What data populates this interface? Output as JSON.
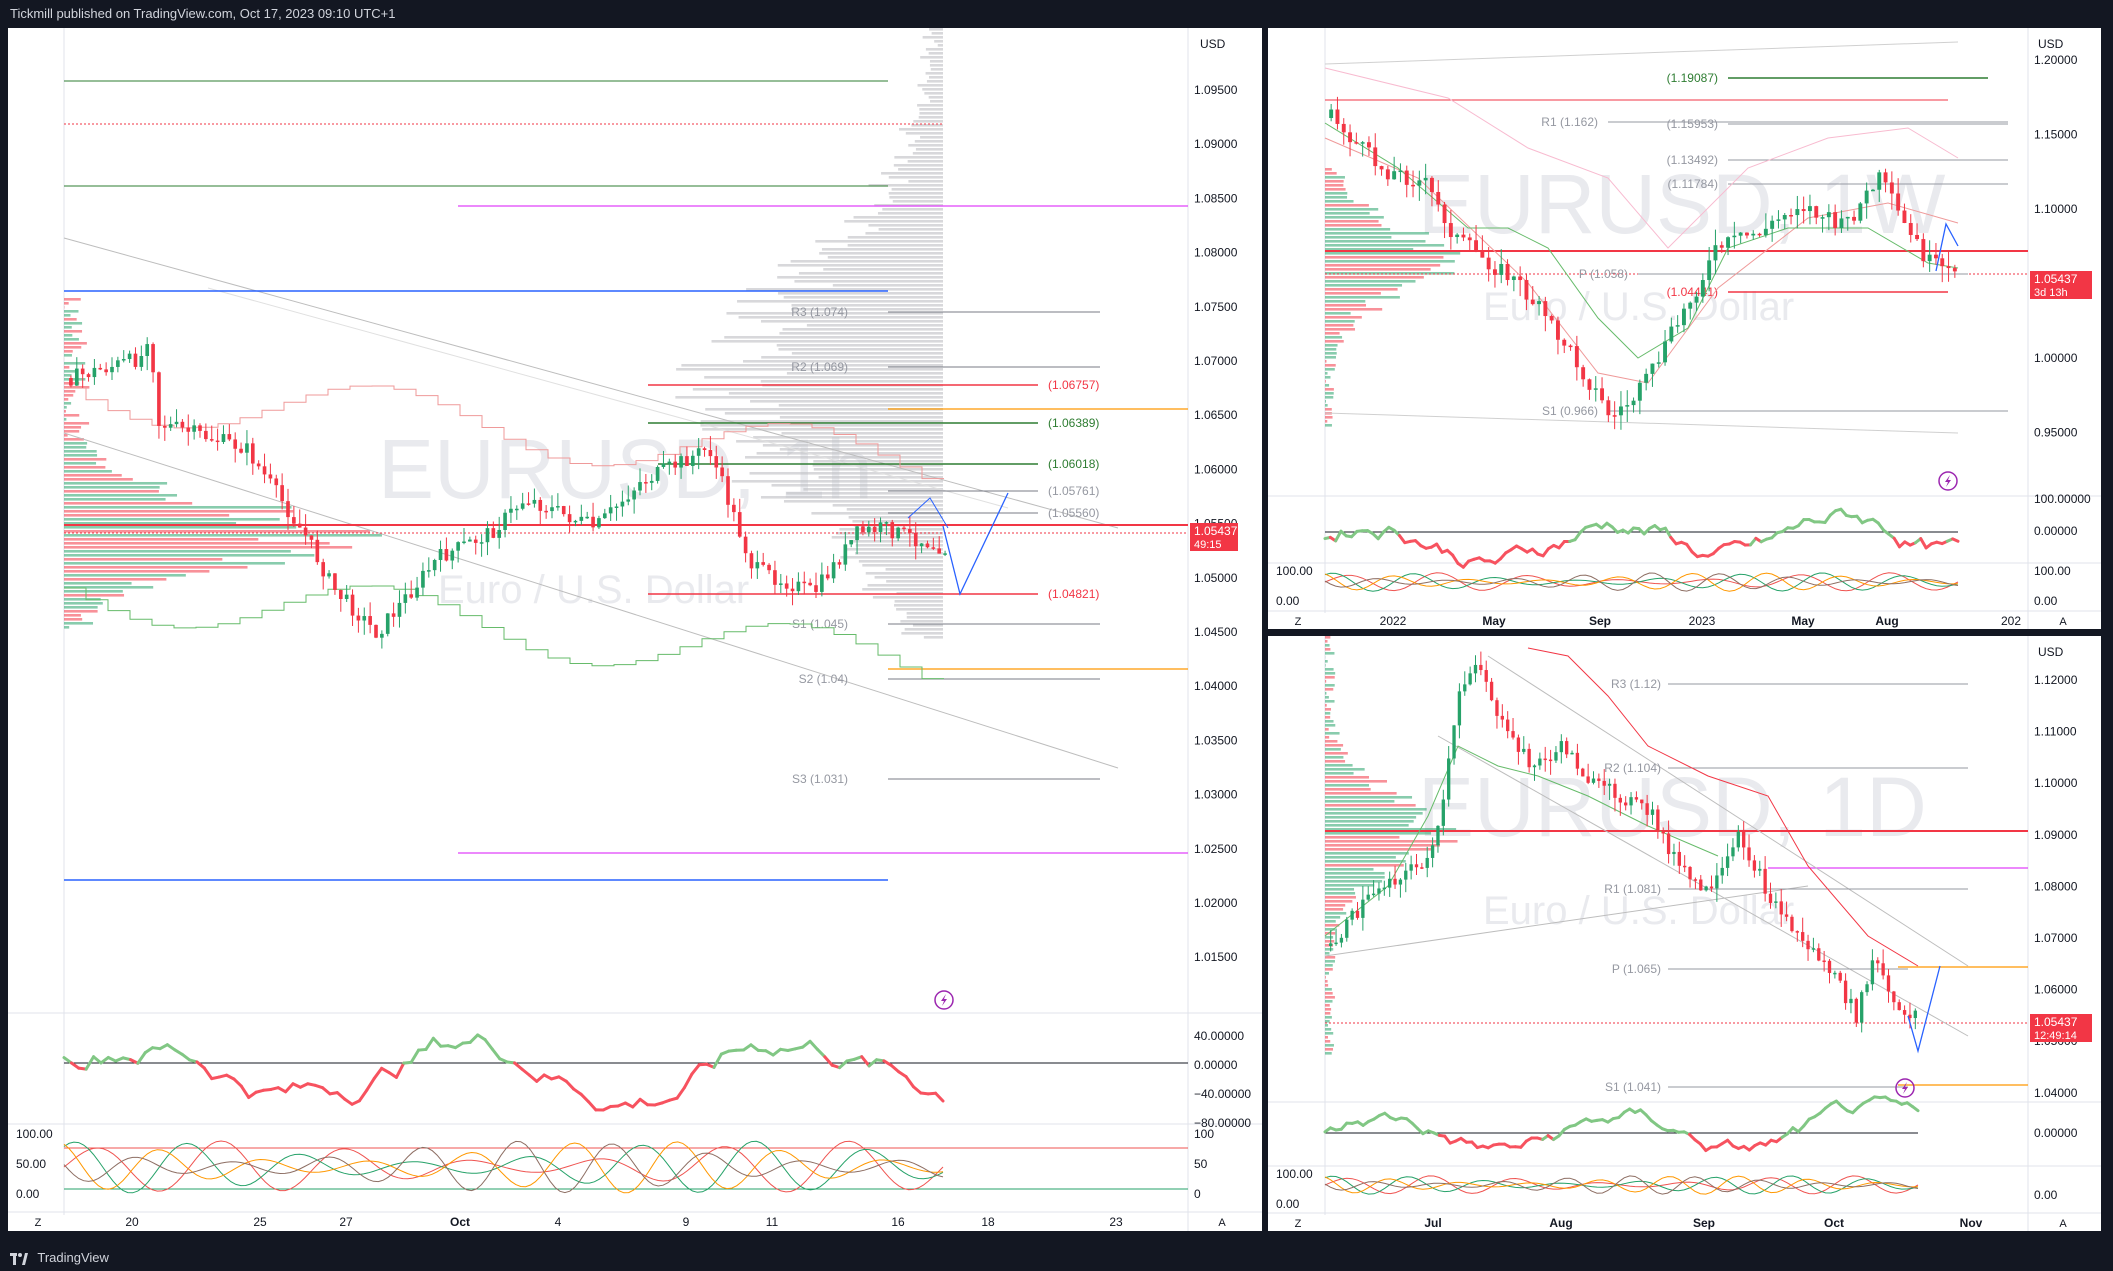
{
  "header": {
    "publish_text": "Tickmill published on TradingView.com, Oct 17, 2023 09:10 UTC+1"
  },
  "footer": {
    "brand": "TradingView"
  },
  "colors": {
    "up": "#26a269",
    "down": "#f23645",
    "blue": "#2962ff",
    "green": "#2e7d32",
    "red": "#f23645",
    "magenta": "#e040fb",
    "orange": "#ff9800",
    "gray": "#787b86"
  },
  "panels": [
    {
      "id": "1h",
      "currency": "USD",
      "watermark_symbol": "EURUSD, 1h",
      "watermark_desc": "Euro / U.S. Dollar",
      "price_axis": [
        "1.09500",
        "1.09000",
        "1.08500",
        "1.08000",
        "1.07500",
        "1.07000",
        "1.06500",
        "1.06000",
        "1.05500",
        "1.05000",
        "1.04500",
        "1.04000",
        "1.03500",
        "1.03000",
        "1.02500",
        "1.02000",
        "1.01500"
      ],
      "price_tag": {
        "value": "1.05437",
        "sub": "49:15"
      },
      "levels": [
        {
          "label": "R3 (1.074)",
          "color": "gray"
        },
        {
          "label": "R2 (1.069)",
          "color": "gray"
        },
        {
          "label": "(1.06757)",
          "color": "red"
        },
        {
          "label": "(1.06389)",
          "color": "green"
        },
        {
          "label": "(1.06018)",
          "color": "green"
        },
        {
          "label": "(1.05761)",
          "color": "gray"
        },
        {
          "label": "(1.05560)",
          "color": "gray"
        },
        {
          "label": "(1.04821)",
          "color": "red"
        },
        {
          "label": "S1 (1.045)",
          "color": "gray"
        },
        {
          "label": "S2 (1.04)",
          "color": "gray"
        },
        {
          "label": "S3 (1.031)",
          "color": "gray"
        }
      ],
      "osc1_axis": [
        "40.00000",
        "0.00000",
        "−40.00000",
        "−80.00000"
      ],
      "osc2_axis_left": [
        "100.00",
        "50.00",
        "0.00"
      ],
      "osc2_axis_right": [
        "100",
        "50",
        "0"
      ],
      "time_axis": [
        "20",
        "25",
        "27",
        "Oct",
        "4",
        "9",
        "11",
        "16",
        "18",
        "23"
      ],
      "zoom_left": "Z",
      "zoom_right": "A"
    },
    {
      "id": "1W",
      "currency": "USD",
      "watermark_symbol": "EURUSD, 1W",
      "watermark_desc": "Euro / U.S. Dollar",
      "price_axis": [
        "1.20000",
        "1.15000",
        "1.10000",
        "1.05000",
        "1.00000",
        "0.95000"
      ],
      "price_tag": {
        "value": "1.05437",
        "sub": "3d 13h"
      },
      "levels": [
        {
          "label": "(1.19087)",
          "color": "green"
        },
        {
          "label": "R1 (1.162)",
          "color": "gray"
        },
        {
          "label": "(1.15953)",
          "color": "gray"
        },
        {
          "label": "(1.13492)",
          "color": "gray"
        },
        {
          "label": "(1.11784)",
          "color": "gray"
        },
        {
          "label": "P (1.058)",
          "color": "gray"
        },
        {
          "label": "(1.04441)",
          "color": "red"
        },
        {
          "label": "S1 (0.966)",
          "color": "gray"
        }
      ],
      "osc1_axis": [
        "100.00000",
        "0.00000"
      ],
      "osc2_axis_left": [
        "100.00",
        "0.00"
      ],
      "osc2_axis_right": [
        "100.00",
        "0.00"
      ],
      "time_axis": [
        "2022",
        "May",
        "Sep",
        "2023",
        "May",
        "Aug",
        "202"
      ],
      "zoom_left": "Z",
      "zoom_right": "A"
    },
    {
      "id": "1D",
      "currency": "USD",
      "watermark_symbol": "EURUSD, 1D",
      "watermark_desc": "Euro / U.S. Dollar",
      "price_axis": [
        "1.12000",
        "1.11000",
        "1.10000",
        "1.09000",
        "1.08000",
        "1.07000",
        "1.06000",
        "1.05000",
        "1.04000"
      ],
      "price_tag": {
        "value": "1.05437",
        "sub": "12:49:14"
      },
      "levels": [
        {
          "label": "R3 (1.12)",
          "color": "gray"
        },
        {
          "label": "R2 (1.104)",
          "color": "gray"
        },
        {
          "label": "R1 (1.081)",
          "color": "gray"
        },
        {
          "label": "P (1.065)",
          "color": "gray"
        },
        {
          "label": "S1 (1.041)",
          "color": "gray"
        }
      ],
      "osc1_axis": [
        "0.00000"
      ],
      "osc2_axis_left": [
        "100.00",
        "0.00"
      ],
      "osc2_axis_right": [
        "0.00"
      ],
      "time_axis": [
        "Jul",
        "Aug",
        "Sep",
        "Oct",
        "Nov"
      ],
      "zoom_left": "Z",
      "zoom_right": "A"
    }
  ]
}
